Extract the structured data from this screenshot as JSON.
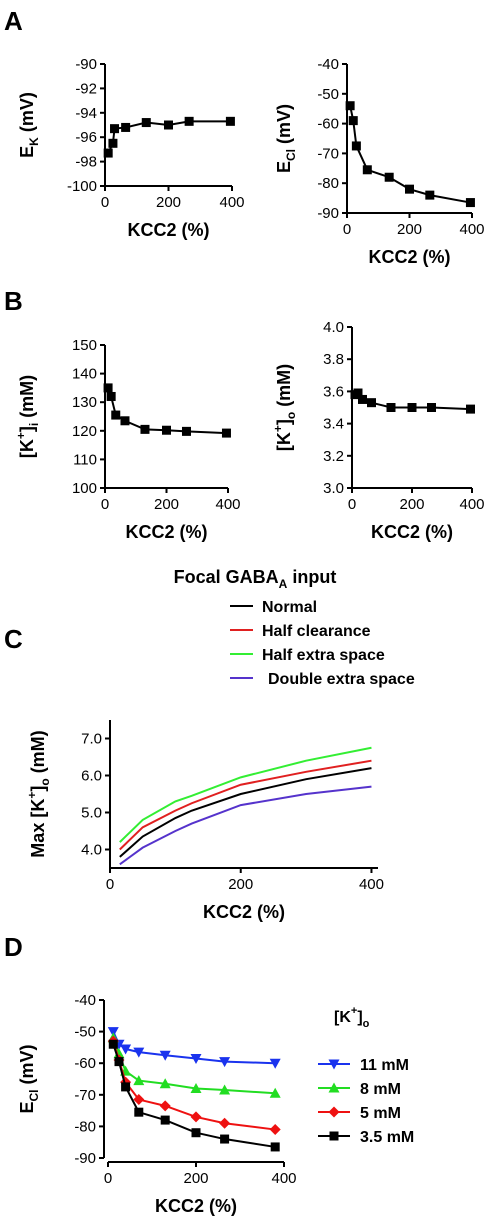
{
  "panels": {
    "A": "A",
    "B": "B",
    "C": "C",
    "D": "D"
  },
  "colors": {
    "black": "#000000",
    "red": "#e02020",
    "green": "#33ee33",
    "purple": "#5533cc",
    "blue": "#1a33ee",
    "green_markers": "#22dd22",
    "red_markers": "#ee1111"
  },
  "charts": {
    "A1": {
      "type": "line",
      "xlabel": "KCC2 (%)",
      "ylabel_main": "E",
      "ylabel_sub": "K",
      "ylabel_tail": " (mV)",
      "xlim": [
        0,
        400
      ],
      "ylim": [
        -100,
        -90
      ],
      "x_ticks": [
        0,
        200,
        400
      ],
      "y_ticks": [
        -100,
        -98,
        -96,
        -94,
        -92,
        -90
      ],
      "x": [
        10,
        25,
        30,
        65,
        130,
        200,
        265,
        395
      ],
      "y": [
        -97.3,
        -96.5,
        -95.3,
        -95.2,
        -94.8,
        -95.0,
        -94.7,
        -94.7
      ]
    },
    "A2": {
      "type": "line",
      "xlabel": "KCC2 (%)",
      "ylabel_main": "E",
      "ylabel_sub": "Cl",
      "ylabel_tail": " (mV)",
      "xlim": [
        0,
        400
      ],
      "ylim": [
        -90,
        -40
      ],
      "x_ticks": [
        0,
        200,
        400
      ],
      "y_ticks": [
        -90,
        -80,
        -70,
        -60,
        -50,
        -40
      ],
      "x": [
        10,
        20,
        30,
        65,
        135,
        200,
        265,
        395
      ],
      "y": [
        -54,
        -59,
        -67.5,
        -75.5,
        -78,
        -82,
        -84,
        -86.5
      ]
    },
    "B1": {
      "type": "line",
      "xlabel": "KCC2 (%)",
      "ylabel_main": "[K",
      "ylabel_sup": "+",
      "ylabel_mid": "]",
      "ylabel_sub": "i",
      "ylabel_tail": " (mM)",
      "xlim": [
        0,
        400
      ],
      "ylim": [
        100,
        150
      ],
      "x_ticks": [
        0,
        200,
        400
      ],
      "y_ticks": [
        100,
        110,
        120,
        130,
        140,
        150
      ],
      "x": [
        10,
        20,
        35,
        65,
        130,
        200,
        265,
        395
      ],
      "y": [
        135,
        132,
        125.5,
        123.5,
        120.5,
        120.2,
        119.8,
        119.2
      ]
    },
    "B2": {
      "type": "line",
      "xlabel": "KCC2 (%)",
      "ylabel_main": "[K",
      "ylabel_sup": "+",
      "ylabel_mid": "]",
      "ylabel_sub": "o",
      "ylabel_tail": " (mM)",
      "xlim": [
        0,
        400
      ],
      "ylim": [
        3.0,
        4.0
      ],
      "x_ticks": [
        0,
        200,
        400
      ],
      "y_ticks": [
        "3.0",
        "3.2",
        "3.4",
        "3.6",
        "3.8",
        "4.0"
      ],
      "x": [
        10,
        20,
        35,
        65,
        130,
        200,
        265,
        395
      ],
      "y": [
        3.58,
        3.59,
        3.55,
        3.53,
        3.5,
        3.5,
        3.5,
        3.49
      ]
    },
    "C": {
      "type": "line",
      "title_main": "Focal GABA",
      "title_sub": "A",
      "title_tail": " input",
      "xlabel": "KCC2 (%)",
      "ylabel_main": "Max [K",
      "ylabel_sup": "+",
      "ylabel_mid": "]",
      "ylabel_sub": "o",
      "ylabel_tail": " (mM)",
      "xlim": [
        0,
        410
      ],
      "ylim": [
        3.5,
        7.5
      ],
      "x_ticks": [
        0,
        200,
        400
      ],
      "y_ticks": [
        "4.0",
        "5.0",
        "6.0",
        "7.0"
      ],
      "x": [
        15,
        50,
        100,
        125,
        200,
        300,
        400
      ],
      "series": [
        {
          "name": "Normal",
          "color": "#000000",
          "y": [
            3.8,
            4.35,
            4.85,
            5.05,
            5.5,
            5.9,
            6.2
          ]
        },
        {
          "name": "Half clearance",
          "color": "#e02020",
          "y": [
            4.0,
            4.6,
            5.05,
            5.25,
            5.75,
            6.1,
            6.4
          ]
        },
        {
          "name": "Half extra space",
          "color": "#33ee33",
          "y": [
            4.2,
            4.8,
            5.3,
            5.45,
            5.95,
            6.4,
            6.75
          ]
        },
        {
          "name": "Double extra space",
          "color": "#5533cc",
          "y": [
            3.6,
            4.05,
            4.5,
            4.7,
            5.2,
            5.5,
            5.7
          ]
        }
      ]
    },
    "D": {
      "type": "line",
      "xlabel": "KCC2 (%)",
      "ylabel_main": "E",
      "ylabel_sub": "Cl",
      "ylabel_tail": " (mV)",
      "legend_title_main": "[K",
      "legend_title_sup": "+",
      "legend_title_mid": "]",
      "legend_title_sub": "o",
      "xlim": [
        0,
        400
      ],
      "ylim": [
        -90,
        -40
      ],
      "x_ticks": [
        0,
        200,
        400
      ],
      "y_ticks": [
        -90,
        -80,
        -70,
        -60,
        -50,
        -40
      ],
      "x": [
        12,
        25,
        40,
        70,
        130,
        200,
        265,
        380
      ],
      "series": [
        {
          "name": "11 mM",
          "color": "#1a33ee",
          "marker": "triangle-down",
          "y": [
            -50,
            -54,
            -55.5,
            -56.5,
            -57.5,
            -58.5,
            -59.5,
            -60
          ]
        },
        {
          "name": "8 mM",
          "color": "#22dd22",
          "marker": "triangle-up",
          "y": [
            -52,
            -57,
            -62.5,
            -65.5,
            -66.5,
            -68,
            -68.5,
            -69.5
          ]
        },
        {
          "name": "5 mM",
          "color": "#ee1111",
          "marker": "diamond",
          "y": [
            -53,
            -59,
            -66,
            -71.5,
            -73.5,
            -77,
            -79,
            -81
          ]
        },
        {
          "name": "3.5 mM",
          "color": "#000000",
          "marker": "square",
          "y": [
            -54,
            -59.5,
            -67.5,
            -75.5,
            -78,
            -82,
            -84,
            -86.5
          ]
        }
      ]
    }
  }
}
